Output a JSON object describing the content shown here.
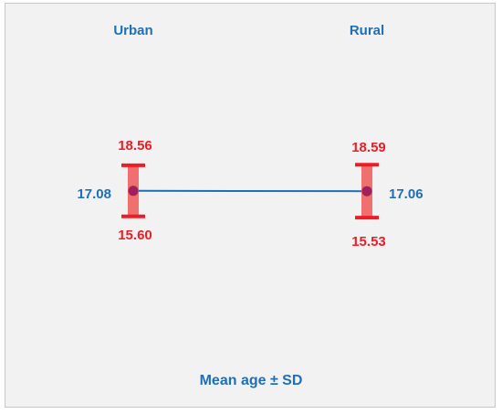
{
  "chart_data": {
    "type": "errorbar",
    "categories": [
      "Urban",
      "Rural"
    ],
    "series": [
      {
        "mean": [
          17.08,
          17.06
        ],
        "upper": [
          18.56,
          18.59
        ],
        "lower": [
          15.6,
          15.53
        ]
      }
    ],
    "mean_labels": [
      "17.08",
      "17.06"
    ],
    "upper_labels": [
      "18.56",
      "18.59"
    ],
    "lower_labels": [
      "15.60",
      "15.53"
    ],
    "xlabel": "Mean age ± SD",
    "ylabel": "",
    "ylim": [
      14.5,
      19.5
    ],
    "grid": false,
    "colors": {
      "mean_line": "#1f6fb8",
      "error_bar": "#ee1c24",
      "error_band": "#f07070",
      "mean_point": "#a0205a",
      "background": "#f2f2f2"
    }
  }
}
